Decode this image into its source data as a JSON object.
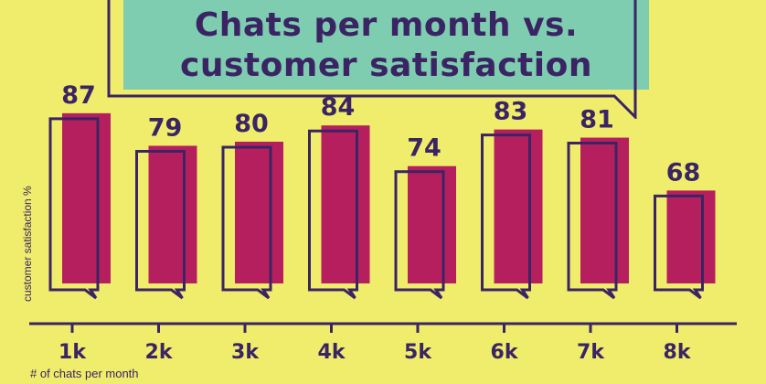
{
  "chart_data": {
    "type": "bar",
    "title": "Chats per month vs. customer satisfaction",
    "title_lines": [
      "Chats per month vs.",
      "customer satisfaction"
    ],
    "xlabel": "# of chats per month",
    "ylabel": "customer satisfaction %",
    "categories": [
      "1k",
      "2k",
      "3k",
      "4k",
      "5k",
      "6k",
      "7k",
      "8k"
    ],
    "values": [
      87,
      79,
      80,
      84,
      74,
      83,
      81,
      68
    ],
    "ylim": [
      0,
      100
    ],
    "grid": false,
    "legend": "none"
  },
  "colors": {
    "background": "#f0ec6c",
    "bar": "#b61f5e",
    "outline": "#3b2463",
    "title_box": "#7ecdb0",
    "text": "#3b2463"
  }
}
